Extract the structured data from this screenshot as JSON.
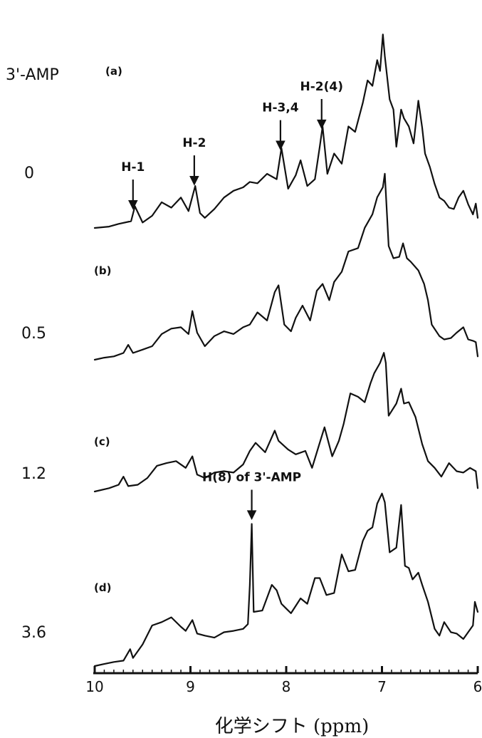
{
  "chart_data": {
    "type": "line",
    "conc_header": "3'-AMP",
    "xlabel": "化学シフト (ppm)",
    "xlim": [
      10,
      6
    ],
    "x_ticks": [
      "10",
      "9",
      "8",
      "7",
      "6"
    ],
    "series": [
      {
        "panel": "(a)",
        "conc": "0",
        "points": [
          [
            10,
            0
          ],
          [
            9.85,
            2
          ],
          [
            9.75,
            6
          ],
          [
            9.62,
            10
          ],
          [
            9.58,
            32
          ],
          [
            9.5,
            8
          ],
          [
            9.4,
            18
          ],
          [
            9.3,
            38
          ],
          [
            9.2,
            30
          ],
          [
            9.1,
            45
          ],
          [
            9.02,
            25
          ],
          [
            8.95,
            62
          ],
          [
            8.9,
            22
          ],
          [
            8.85,
            15
          ],
          [
            8.75,
            28
          ],
          [
            8.65,
            45
          ],
          [
            8.55,
            55
          ],
          [
            8.45,
            60
          ],
          [
            8.38,
            68
          ],
          [
            8.3,
            66
          ],
          [
            8.2,
            80
          ],
          [
            8.1,
            72
          ],
          [
            8.05,
            118
          ],
          [
            7.98,
            58
          ],
          [
            7.9,
            78
          ],
          [
            7.85,
            100
          ],
          [
            7.78,
            62
          ],
          [
            7.7,
            72
          ],
          [
            7.65,
            120
          ],
          [
            7.62,
            150
          ],
          [
            7.57,
            80
          ],
          [
            7.5,
            110
          ],
          [
            7.42,
            95
          ],
          [
            7.35,
            150
          ],
          [
            7.28,
            142
          ],
          [
            7.2,
            185
          ],
          [
            7.15,
            218
          ],
          [
            7.1,
            210
          ],
          [
            7.05,
            248
          ],
          [
            7.02,
            232
          ],
          [
            6.99,
            286
          ],
          [
            6.97,
            254
          ],
          [
            6.92,
            190
          ],
          [
            6.88,
            175
          ],
          [
            6.85,
            120
          ],
          [
            6.8,
            175
          ],
          [
            6.77,
            162
          ],
          [
            6.72,
            150
          ],
          [
            6.67,
            125
          ],
          [
            6.62,
            188
          ],
          [
            6.58,
            148
          ],
          [
            6.55,
            110
          ],
          [
            6.5,
            90
          ],
          [
            6.45,
            65
          ],
          [
            6.4,
            45
          ],
          [
            6.35,
            40
          ],
          [
            6.3,
            30
          ],
          [
            6.25,
            28
          ],
          [
            6.2,
            45
          ],
          [
            6.15,
            55
          ],
          [
            6.1,
            35
          ],
          [
            6.05,
            20
          ],
          [
            6.02,
            36
          ],
          [
            6,
            15
          ]
        ]
      },
      {
        "panel": "(b)",
        "conc": "0.5",
        "points": [
          [
            10,
            0
          ],
          [
            9.9,
            3
          ],
          [
            9.8,
            5
          ],
          [
            9.7,
            10
          ],
          [
            9.65,
            22
          ],
          [
            9.6,
            10
          ],
          [
            9.5,
            15
          ],
          [
            9.4,
            20
          ],
          [
            9.3,
            38
          ],
          [
            9.2,
            46
          ],
          [
            9.1,
            48
          ],
          [
            9.02,
            38
          ],
          [
            8.98,
            72
          ],
          [
            8.93,
            40
          ],
          [
            8.85,
            20
          ],
          [
            8.75,
            35
          ],
          [
            8.65,
            42
          ],
          [
            8.55,
            38
          ],
          [
            8.45,
            48
          ],
          [
            8.38,
            52
          ],
          [
            8.3,
            70
          ],
          [
            8.2,
            58
          ],
          [
            8.12,
            100
          ],
          [
            8.08,
            110
          ],
          [
            8.02,
            52
          ],
          [
            7.95,
            42
          ],
          [
            7.9,
            62
          ],
          [
            7.83,
            80
          ],
          [
            7.75,
            58
          ],
          [
            7.68,
            102
          ],
          [
            7.62,
            112
          ],
          [
            7.55,
            88
          ],
          [
            7.5,
            115
          ],
          [
            7.42,
            130
          ],
          [
            7.35,
            160
          ],
          [
            7.25,
            165
          ],
          [
            7.18,
            195
          ],
          [
            7.1,
            215
          ],
          [
            7.05,
            240
          ],
          [
            6.99,
            255
          ],
          [
            6.97,
            275
          ],
          [
            6.93,
            168
          ],
          [
            6.88,
            150
          ],
          [
            6.82,
            152
          ],
          [
            6.78,
            172
          ],
          [
            6.74,
            150
          ],
          [
            6.7,
            145
          ],
          [
            6.62,
            132
          ],
          [
            6.56,
            112
          ],
          [
            6.52,
            88
          ],
          [
            6.48,
            52
          ],
          [
            6.4,
            35
          ],
          [
            6.35,
            30
          ],
          [
            6.28,
            32
          ],
          [
            6.22,
            40
          ],
          [
            6.15,
            48
          ],
          [
            6.1,
            30
          ],
          [
            6.05,
            28
          ],
          [
            6.02,
            26
          ],
          [
            6,
            5
          ]
        ]
      },
      {
        "panel": "(c)",
        "conc": "1.2",
        "points": [
          [
            10,
            0
          ],
          [
            9.85,
            5
          ],
          [
            9.75,
            10
          ],
          [
            9.7,
            22
          ],
          [
            9.65,
            8
          ],
          [
            9.55,
            10
          ],
          [
            9.45,
            20
          ],
          [
            9.35,
            38
          ],
          [
            9.25,
            42
          ],
          [
            9.15,
            45
          ],
          [
            9.05,
            35
          ],
          [
            8.98,
            52
          ],
          [
            8.93,
            25
          ],
          [
            8.85,
            20
          ],
          [
            8.75,
            28
          ],
          [
            8.65,
            30
          ],
          [
            8.55,
            28
          ],
          [
            8.45,
            40
          ],
          [
            8.38,
            60
          ],
          [
            8.32,
            72
          ],
          [
            8.22,
            58
          ],
          [
            8.12,
            90
          ],
          [
            8.08,
            75
          ],
          [
            7.98,
            62
          ],
          [
            7.9,
            55
          ],
          [
            7.8,
            60
          ],
          [
            7.73,
            35
          ],
          [
            7.65,
            72
          ],
          [
            7.6,
            95
          ],
          [
            7.52,
            52
          ],
          [
            7.45,
            75
          ],
          [
            7.4,
            100
          ],
          [
            7.33,
            145
          ],
          [
            7.25,
            140
          ],
          [
            7.18,
            132
          ],
          [
            7.12,
            160
          ],
          [
            7.08,
            175
          ],
          [
            7.02,
            190
          ],
          [
            6.98,
            205
          ],
          [
            6.96,
            190
          ],
          [
            6.93,
            112
          ],
          [
            6.85,
            130
          ],
          [
            6.8,
            152
          ],
          [
            6.77,
            130
          ],
          [
            6.72,
            132
          ],
          [
            6.65,
            110
          ],
          [
            6.58,
            70
          ],
          [
            6.52,
            45
          ],
          [
            6.45,
            35
          ],
          [
            6.38,
            22
          ],
          [
            6.3,
            42
          ],
          [
            6.22,
            30
          ],
          [
            6.15,
            28
          ],
          [
            6.08,
            35
          ],
          [
            6.02,
            30
          ],
          [
            6,
            5
          ]
        ]
      },
      {
        "panel": "(d)",
        "conc": "3.6",
        "points": [
          [
            10,
            0
          ],
          [
            9.9,
            3
          ],
          [
            9.8,
            6
          ],
          [
            9.7,
            8
          ],
          [
            9.63,
            25
          ],
          [
            9.6,
            12
          ],
          [
            9.5,
            32
          ],
          [
            9.4,
            60
          ],
          [
            9.3,
            65
          ],
          [
            9.2,
            72
          ],
          [
            9.1,
            58
          ],
          [
            9.05,
            52
          ],
          [
            8.98,
            68
          ],
          [
            8.93,
            48
          ],
          [
            8.85,
            45
          ],
          [
            8.75,
            42
          ],
          [
            8.65,
            50
          ],
          [
            8.55,
            52
          ],
          [
            8.45,
            55
          ],
          [
            8.4,
            62
          ],
          [
            8.38,
            120
          ],
          [
            8.36,
            210
          ],
          [
            8.34,
            80
          ],
          [
            8.25,
            82
          ],
          [
            8.15,
            120
          ],
          [
            8.1,
            112
          ],
          [
            8.05,
            92
          ],
          [
            8.0,
            85
          ],
          [
            7.95,
            78
          ],
          [
            7.85,
            100
          ],
          [
            7.78,
            92
          ],
          [
            7.7,
            130
          ],
          [
            7.65,
            130
          ],
          [
            7.58,
            105
          ],
          [
            7.5,
            108
          ],
          [
            7.42,
            165
          ],
          [
            7.35,
            140
          ],
          [
            7.28,
            142
          ],
          [
            7.2,
            185
          ],
          [
            7.15,
            200
          ],
          [
            7.1,
            205
          ],
          [
            7.05,
            240
          ],
          [
            7.0,
            255
          ],
          [
            6.97,
            242
          ],
          [
            6.92,
            168
          ],
          [
            6.85,
            175
          ],
          [
            6.8,
            238
          ],
          [
            6.76,
            148
          ],
          [
            6.72,
            145
          ],
          [
            6.68,
            128
          ],
          [
            6.62,
            138
          ],
          [
            6.58,
            120
          ],
          [
            6.52,
            95
          ],
          [
            6.45,
            55
          ],
          [
            6.4,
            45
          ],
          [
            6.35,
            65
          ],
          [
            6.28,
            50
          ],
          [
            6.22,
            48
          ],
          [
            6.15,
            40
          ],
          [
            6.05,
            60
          ],
          [
            6.03,
            95
          ],
          [
            6,
            80
          ]
        ]
      }
    ],
    "annotations": [
      {
        "text": "H-1",
        "series": 0,
        "x": 9.6
      },
      {
        "text": "H-2",
        "series": 0,
        "x": 8.96
      },
      {
        "text": "H-3,4",
        "series": 0,
        "x": 8.06
      },
      {
        "text": "H-2(4)",
        "series": 0,
        "x": 7.63
      },
      {
        "text": "H(8) of 3'-AMP",
        "series": 3,
        "x": 8.36
      }
    ]
  }
}
